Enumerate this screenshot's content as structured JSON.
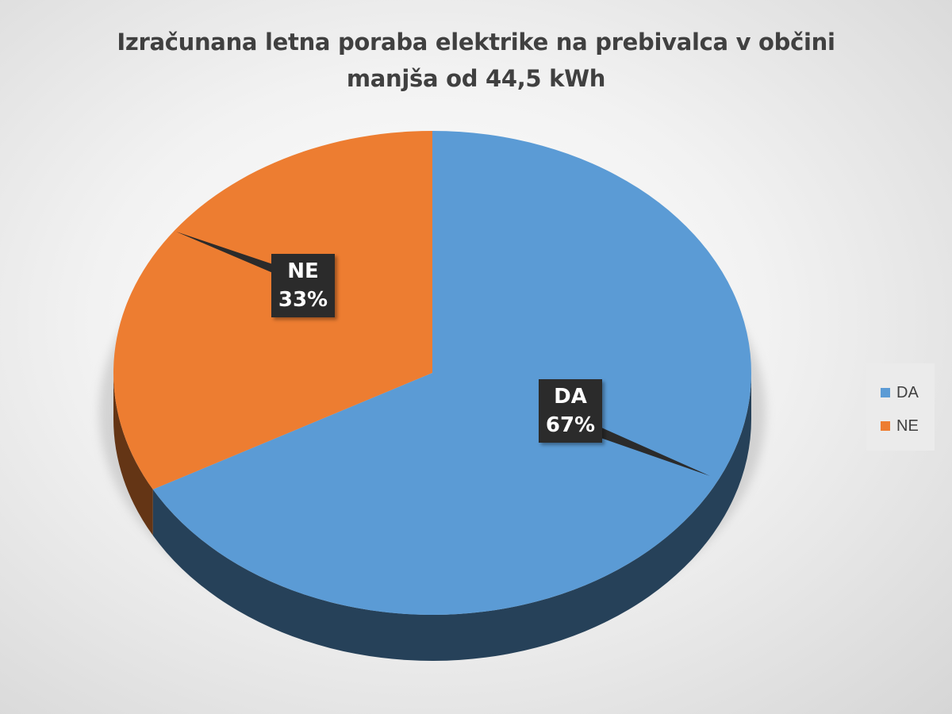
{
  "chart_data": {
    "type": "pie",
    "title": [
      "Izračunana letna poraba elektrike na prebivalca v občini",
      "manjša od 44,5 kWh"
    ],
    "slices": [
      {
        "label": "DA",
        "value": 67,
        "value_label": "67%",
        "color": "#5b9bd5"
      },
      {
        "label": "NE",
        "value": 33,
        "value_label": "33%",
        "color": "#ed7d31"
      }
    ],
    "style": "3d-exploded-perspective",
    "legend": {
      "position": "right",
      "entries": [
        "DA",
        "NE"
      ]
    }
  }
}
